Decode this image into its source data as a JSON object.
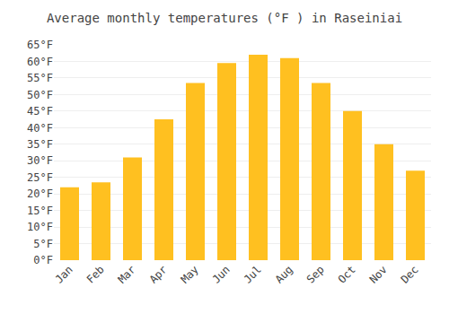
{
  "chart_data": {
    "type": "bar",
    "title": "Average monthly temperatures (°F ) in Raseiniai",
    "categories": [
      "Jan",
      "Feb",
      "Mar",
      "Apr",
      "May",
      "Jun",
      "Jul",
      "Aug",
      "Sep",
      "Oct",
      "Nov",
      "Dec"
    ],
    "values": [
      22,
      23.5,
      31,
      42.5,
      53.5,
      59.5,
      62,
      61,
      53.5,
      45,
      35,
      27
    ],
    "color": "#FFC020",
    "ylim": [
      0,
      65
    ],
    "yticks": [
      {
        "value": 0,
        "label": "0°F"
      },
      {
        "value": 5,
        "label": "5°F"
      },
      {
        "value": 10,
        "label": "10°F"
      },
      {
        "value": 15,
        "label": "15°F"
      },
      {
        "value": 20,
        "label": "20°F"
      },
      {
        "value": 25,
        "label": "25°F"
      },
      {
        "value": 30,
        "label": "30°F"
      },
      {
        "value": 35,
        "label": "35°F"
      },
      {
        "value": 40,
        "label": "40°F"
      },
      {
        "value": 45,
        "label": "45°F"
      },
      {
        "value": 50,
        "label": "50°F"
      },
      {
        "value": 55,
        "label": "55°F"
      },
      {
        "value": 60,
        "label": "60°F"
      },
      {
        "value": 65,
        "label": "65°F"
      }
    ],
    "grid": true
  }
}
